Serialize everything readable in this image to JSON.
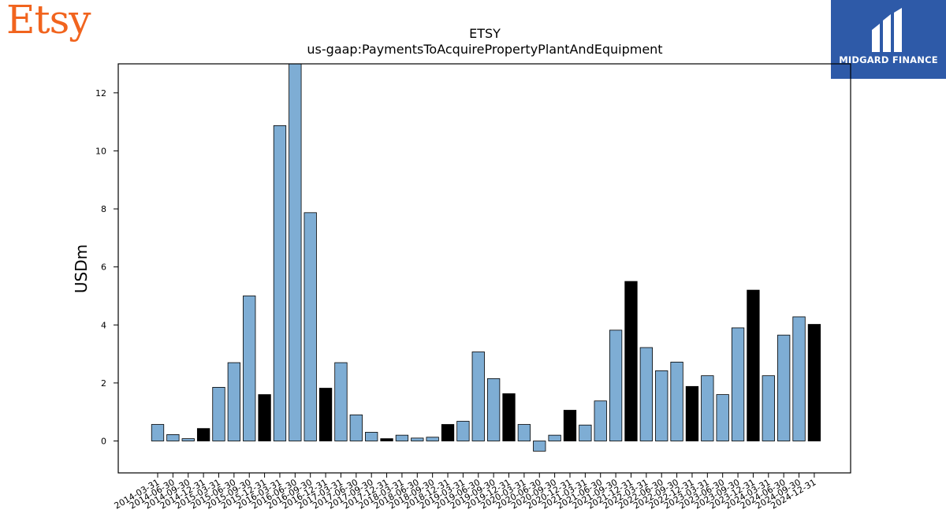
{
  "brand": {
    "name": "Etsy",
    "color": "#f1641e"
  },
  "badge": {
    "text": "MIDGARD FINANCE",
    "background": "#2e5aa8"
  },
  "chart_data": {
    "type": "bar",
    "title": "ETSY",
    "subtitle": "us-gaap:PaymentsToAcquirePropertyPlantAndEquipment",
    "xlabel": "",
    "ylabel": "USDm",
    "ylim": [
      -1.1,
      13.0
    ],
    "yticks": [
      0,
      2,
      4,
      6,
      8,
      10,
      12
    ],
    "grid": false,
    "colors": {
      "quarter": "#7eadd4",
      "year_end": "#000000",
      "edge": "#000000"
    },
    "categories": [
      "2014-03-31",
      "2014-06-30",
      "2014-09-30",
      "2014-12-31",
      "2015-03-31",
      "2015-06-30",
      "2015-09-30",
      "2015-12-31",
      "2016-03-31",
      "2016-06-30",
      "2016-09-30",
      "2016-12-31",
      "2017-03-31",
      "2017-06-30",
      "2017-09-30",
      "2017-12-31",
      "2018-03-31",
      "2018-06-30",
      "2018-09-30",
      "2018-12-31",
      "2019-03-31",
      "2019-06-30",
      "2019-09-30",
      "2019-12-31",
      "2020-03-31",
      "2020-06-30",
      "2020-09-30",
      "2020-12-31",
      "2021-03-31",
      "2021-06-30",
      "2021-09-30",
      "2021-12-31",
      "2022-03-31",
      "2022-06-30",
      "2022-09-30",
      "2022-12-31",
      "2023-03-31",
      "2023-06-30",
      "2023-09-30",
      "2023-12-31",
      "2024-03-31",
      "2024-06-30",
      "2024-09-30",
      "2024-12-31"
    ],
    "values": [
      0.57,
      0.22,
      0.08,
      0.43,
      1.85,
      2.7,
      5.0,
      1.6,
      10.87,
      13.0,
      7.87,
      1.82,
      2.7,
      0.9,
      0.3,
      0.08,
      0.2,
      0.1,
      0.13,
      0.57,
      0.68,
      3.07,
      2.15,
      1.63,
      0.57,
      -0.35,
      0.2,
      1.06,
      0.55,
      1.38,
      3.82,
      5.5,
      3.22,
      2.42,
      2.72,
      1.88,
      2.25,
      1.6,
      3.9,
      5.2,
      2.25,
      3.65,
      4.28,
      4.02
    ],
    "year_end": [
      false,
      false,
      false,
      true,
      false,
      false,
      false,
      true,
      false,
      false,
      false,
      true,
      false,
      false,
      false,
      true,
      false,
      false,
      false,
      true,
      false,
      false,
      false,
      true,
      false,
      false,
      false,
      true,
      false,
      false,
      false,
      true,
      false,
      false,
      false,
      true,
      false,
      false,
      false,
      true,
      false,
      false,
      false,
      true
    ]
  }
}
